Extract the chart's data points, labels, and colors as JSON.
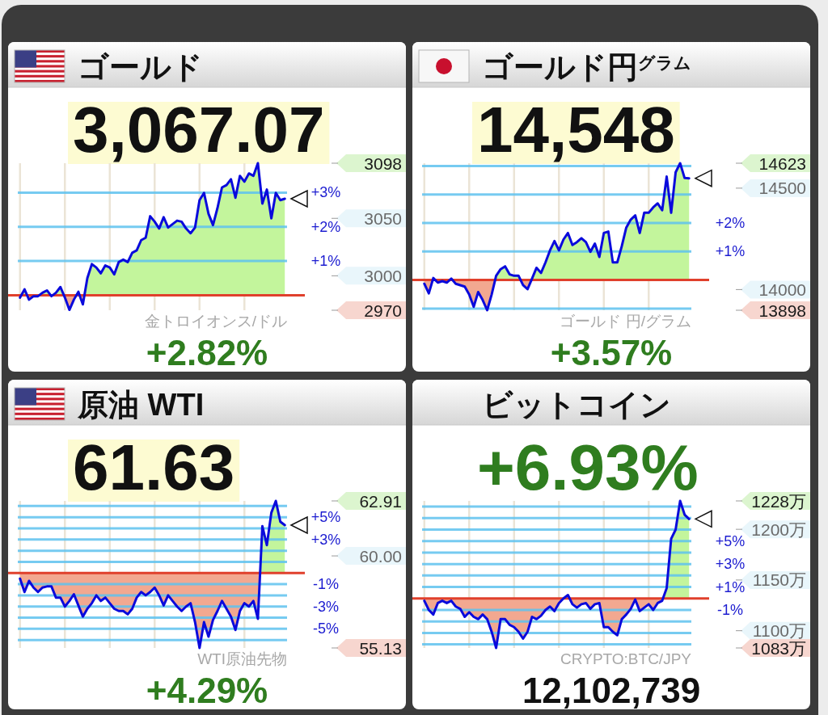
{
  "chart_data": [
    {
      "type": "area",
      "title": "ゴールド",
      "subtitle": "3,067.07",
      "annotations": [
        "+2.82%",
        "金トロイオンス/ドル"
      ],
      "categories": [
        null,
        null,
        null,
        null,
        null,
        null,
        null,
        null,
        null,
        null,
        null,
        null,
        null,
        null,
        null,
        null,
        null,
        null,
        null,
        null,
        null,
        null,
        null,
        null,
        null,
        null,
        null,
        null,
        null,
        null,
        null,
        null,
        null,
        null,
        null,
        null,
        null,
        null,
        null,
        null,
        null,
        null,
        null,
        null,
        null,
        null,
        null,
        null,
        null,
        null,
        null,
        null,
        null,
        null,
        null,
        null,
        null,
        null,
        null,
        null
      ],
      "series": [
        {
          "color": "#0a0adc",
          "values": [
            -0.07,
            0.17,
            -0.13,
            -0.03,
            -0.03,
            0.07,
            0.14,
            -0.03,
            0.07,
            0.24,
            -0.07,
            -0.43,
            -0.13,
            0.1,
            -0.27,
            0.5,
            0.91,
            0.81,
            0.64,
            0.87,
            0.81,
            0.61,
            0.97,
            1.04,
            0.97,
            1.24,
            1.31,
            1.61,
            1.68,
            2.31,
            2.15,
            1.95,
            2.28,
            1.98,
            2.08,
            2.18,
            2.15,
            1.95,
            1.81,
            1.98,
            2.78,
            2.99,
            2.38,
            2.05,
            2.55,
            3.15,
            3.22,
            3.39,
            2.85,
            3.49,
            3.32,
            3.56,
            3.49,
            3.86,
            2.68,
            3.09,
            2.25,
            2.99,
            2.78,
            2.82
          ]
        }
      ],
      "ylim": [
        -0.44,
        3.86
      ],
      "yticks": [
        {
          "value": 1,
          "label": "+1%"
        },
        {
          "value": 2,
          "label": "+2%"
        },
        {
          "value": 3,
          "label": "+3%"
        }
      ],
      "y2lim": [
        2970,
        3098
      ],
      "y2ticks": [
        2970,
        3000,
        3050,
        3098
      ],
      "ref_lines": [
        {
          "axis": "y",
          "value": 0,
          "color": "#e0402c"
        }
      ],
      "grid": true
    },
    {
      "type": "area",
      "title": "ゴールド円$^{グラム}$",
      "subtitle": "14,548",
      "annotations": [
        "+3.57%",
        "ゴールド 円/グラム"
      ],
      "categories": [
        null,
        null,
        null,
        null,
        null,
        null,
        null,
        null,
        null,
        null,
        null,
        null,
        null,
        null,
        null,
        null,
        null,
        null,
        null,
        null,
        null,
        null,
        null,
        null,
        null,
        null,
        null,
        null,
        null,
        null,
        null,
        null,
        null,
        null,
        null,
        null,
        null,
        null,
        null,
        null,
        null,
        null,
        null,
        null,
        null,
        null,
        null,
        null,
        null,
        null,
        null,
        null,
        null,
        null,
        null,
        null,
        null,
        null,
        null,
        null
      ],
      "series": [
        {
          "color": "#0a0adc",
          "values": [
            -0.13,
            -0.47,
            0.07,
            -0.09,
            -0.04,
            -0.09,
            0.05,
            -0.13,
            -0.18,
            -0.23,
            -0.51,
            -0.94,
            -0.42,
            -0.7,
            -1.06,
            -0.51,
            0.15,
            0.38,
            0.48,
            0.2,
            0.15,
            0.15,
            -0.18,
            -0.32,
            0.05,
            0.43,
            0.25,
            0.62,
            1.04,
            1.37,
            1.04,
            1.42,
            1.65,
            1.23,
            1.33,
            1.47,
            1.33,
            0.99,
            1.28,
            0.81,
            1.65,
            1.7,
            0.62,
            0.62,
            1.19,
            1.84,
            2.12,
            2.27,
            1.65,
            2.36,
            2.36,
            2.55,
            2.69,
            2.45,
            3.63,
            2.36,
            3.78,
            4.1,
            3.58,
            3.57
          ]
        }
      ],
      "ylim": [
        -1.06,
        4.1
      ],
      "yticks": [
        {
          "value": -1,
          "label": null
        },
        {
          "value": 1,
          "label": "+1%"
        },
        {
          "value": 2,
          "label": "+2%"
        },
        {
          "value": 3,
          "label": null
        },
        {
          "value": 4,
          "label": null
        }
      ],
      "y2lim": [
        13898,
        14623
      ],
      "y2ticks": [
        13898,
        14000,
        14500,
        14623
      ],
      "ref_lines": [
        {
          "axis": "y",
          "value": 0,
          "color": "#e0402c"
        }
      ],
      "grid": true
    },
    {
      "type": "area",
      "title": "原油 WTI",
      "subtitle": "61.63",
      "annotations": [
        "+4.29%",
        "WTI原油先物"
      ],
      "categories": [
        null,
        null,
        null,
        null,
        null,
        null,
        null,
        null,
        null,
        null,
        null,
        null,
        null,
        null,
        null,
        null,
        null,
        null,
        null,
        null,
        null,
        null,
        null,
        null,
        null,
        null,
        null,
        null,
        null,
        null,
        null,
        null,
        null,
        null,
        null,
        null,
        null,
        null,
        null,
        null,
        null,
        null,
        null,
        null,
        null,
        null,
        null,
        null,
        null,
        null,
        null,
        null,
        null,
        null,
        null,
        null,
        null,
        null,
        null,
        null
      ],
      "series": [
        {
          "color": "#0a0adc",
          "values": [
            -0.5,
            -1.7,
            -0.7,
            -1.3,
            -1.7,
            -1.3,
            -1.2,
            -1.2,
            -2.2,
            -2.2,
            -3.0,
            -2.5,
            -1.9,
            -2.9,
            -3.9,
            -3.2,
            -2.7,
            -2.0,
            -2.5,
            -2.2,
            -2.7,
            -3.2,
            -3.4,
            -3.4,
            -3.7,
            -3.2,
            -2.2,
            -1.7,
            -2.0,
            -1.7,
            -1.3,
            -2.0,
            -2.9,
            -2.0,
            -2.5,
            -3.0,
            -3.4,
            -3.0,
            -2.7,
            -4.4,
            -6.71,
            -4.4,
            -5.7,
            -4.2,
            -3.4,
            -2.5,
            -3.2,
            -3.9,
            -5.1,
            -3.4,
            -2.7,
            -3.0,
            -2.5,
            -4.1,
            4.2,
            2.5,
            5.4,
            6.46,
            4.6,
            4.29
          ]
        }
      ],
      "ylim": [
        -6.71,
        6.46
      ],
      "yticks": [
        {
          "value": -6,
          "label": null
        },
        {
          "value": -5,
          "label": "-5%"
        },
        {
          "value": -4,
          "label": null
        },
        {
          "value": -3,
          "label": "-3%"
        },
        {
          "value": -2,
          "label": null
        },
        {
          "value": -1,
          "label": "-1%"
        },
        {
          "value": 1,
          "label": null
        },
        {
          "value": 2,
          "label": null
        },
        {
          "value": 3,
          "label": "+3%"
        },
        {
          "value": 4,
          "label": null
        },
        {
          "value": 5,
          "label": "+5%"
        },
        {
          "value": 6,
          "label": null
        }
      ],
      "y2lim": [
        55.13,
        62.91
      ],
      "y2ticks": [
        55.13,
        {
          "value": 60,
          "label": "60.00"
        },
        62.91
      ],
      "ref_lines": [
        {
          "axis": "y",
          "value": 0,
          "color": "#e0402c"
        }
      ],
      "grid": true
    },
    {
      "type": "area",
      "title": "ビットコイン",
      "subtitle": "+6.93%",
      "annotations": [
        "12,102,739",
        "CRYPTO:BTC/JPY"
      ],
      "categories": [
        null,
        null,
        null,
        null,
        null,
        null,
        null,
        null,
        null,
        null,
        null,
        null,
        null,
        null,
        null,
        null,
        null,
        null,
        null,
        null,
        null,
        null,
        null,
        null,
        null,
        null,
        null,
        null,
        null,
        null,
        null,
        null,
        null,
        null,
        null,
        null,
        null,
        null,
        null,
        null,
        null,
        null,
        null,
        null,
        null,
        null,
        null,
        null,
        null,
        null,
        null,
        null,
        null,
        null,
        null,
        null,
        null,
        null,
        null,
        null
      ],
      "series": [
        {
          "color": "#0a0adc",
          "values": [
            -0.2,
            -1.0,
            -1.4,
            -0.4,
            -0.2,
            -0.4,
            -0.2,
            -0.7,
            -0.9,
            -1.6,
            -1.2,
            -1.6,
            -1.8,
            -1.4,
            -1.8,
            -2.9,
            -4.31,
            -1.8,
            -1.8,
            -2.3,
            -2.5,
            -2.9,
            -3.5,
            -2.9,
            -1.6,
            -1.8,
            -1.5,
            -1.0,
            -0.7,
            -1.1,
            -0.4,
            0.0,
            0.3,
            -0.5,
            -0.8,
            -0.5,
            -0.4,
            -0.9,
            -0.5,
            -0.4,
            -2.5,
            -2.5,
            -2.9,
            -3.2,
            -1.8,
            -1.4,
            -0.9,
            -0.1,
            -1.1,
            -0.8,
            -0.5,
            -1.0,
            -0.4,
            -0.2,
            0.9,
            5.2,
            6.0,
            8.5,
            7.3,
            6.93
          ]
        }
      ],
      "ylim": [
        -4.31,
        8.5
      ],
      "yticks": [
        {
          "value": -4,
          "label": null
        },
        {
          "value": -3,
          "label": null
        },
        {
          "value": -2,
          "label": null
        },
        {
          "value": -1,
          "label": "-1%"
        },
        {
          "value": 1,
          "label": "+1%"
        },
        {
          "value": 2,
          "label": null
        },
        {
          "value": 3,
          "label": "+3%"
        },
        {
          "value": 4,
          "label": null
        },
        {
          "value": 5,
          "label": "+5%"
        },
        {
          "value": 6,
          "label": null
        },
        {
          "value": 7,
          "label": null
        },
        {
          "value": 8,
          "label": null
        }
      ],
      "y2lim": [
        1083,
        1228
      ],
      "y2ticks": [
        {
          "value": 1083,
          "label": "1083万"
        },
        {
          "value": 1100,
          "label": "1100万"
        },
        {
          "value": 1150,
          "label": "1150万"
        },
        {
          "value": 1200,
          "label": "1200万"
        },
        {
          "value": 1228,
          "label": "1228万"
        }
      ],
      "ref_lines": [
        {
          "axis": "y",
          "value": 0,
          "color": "#e0402c"
        }
      ],
      "grid": true
    }
  ]
}
